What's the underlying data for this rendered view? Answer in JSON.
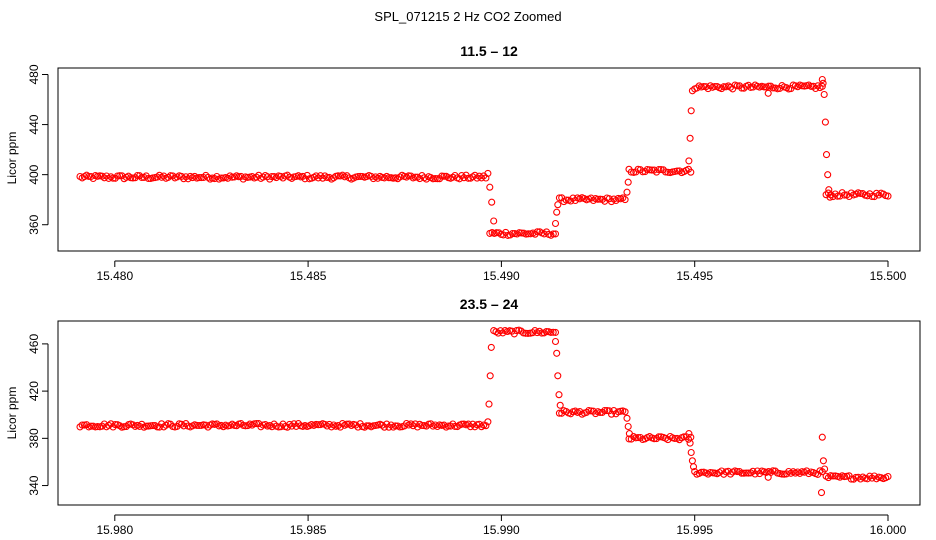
{
  "figure_title": "SPL_071215  2 Hz CO2 Zoomed",
  "colors": {
    "points": "#ff0000",
    "axes": "#000000",
    "background": "#ffffff"
  },
  "chart_data": [
    {
      "type": "scatter",
      "title": "11.5 – 12",
      "xlabel": "",
      "ylabel": "Licor ppm",
      "xlim": [
        15.4791,
        15.5
      ],
      "ylim": [
        347,
        482
      ],
      "xticks": [
        15.48,
        15.485,
        15.49,
        15.495,
        15.5
      ],
      "xtick_labels": [
        "15.480",
        "15.485",
        "15.490",
        "15.495",
        "15.500"
      ],
      "yticks": [
        360,
        400,
        440,
        480
      ],
      "ytick_labels": [
        "360",
        "400",
        "440",
        "480"
      ],
      "grid": false,
      "marker": "open circle",
      "segments": [
        {
          "x_start": 15.4791,
          "x_end": 15.4896,
          "y": 398
        },
        {
          "x_start": 15.4897,
          "x_end": 15.4914,
          "y": 353
        },
        {
          "x_start": 15.4915,
          "x_end": 15.4932,
          "y": 380
        },
        {
          "x_start": 15.4933,
          "x_end": 15.4949,
          "y": 403
        },
        {
          "x_start": 15.495,
          "x_end": 15.4983,
          "y": 470
        },
        {
          "x_start": 15.4984,
          "x_end": 15.5,
          "y": 384
        }
      ],
      "transition_points": [
        [
          15.48965,
          401
        ],
        [
          15.4897,
          390
        ],
        [
          15.48975,
          378
        ],
        [
          15.4898,
          363
        ],
        [
          15.4914,
          361
        ],
        [
          15.49143,
          370
        ],
        [
          15.49146,
          376
        ],
        [
          15.49325,
          386
        ],
        [
          15.49328,
          394
        ],
        [
          15.49485,
          411
        ],
        [
          15.49488,
          429
        ],
        [
          15.49491,
          451
        ],
        [
          15.49494,
          467
        ],
        [
          15.4983,
          476
        ],
        [
          15.49832,
          473
        ],
        [
          15.49835,
          464
        ],
        [
          15.49838,
          442
        ],
        [
          15.49841,
          416
        ],
        [
          15.49844,
          400
        ],
        [
          15.49847,
          388
        ],
        [
          15.4985,
          382
        ],
        [
          15.4969,
          465
        ]
      ]
    },
    {
      "type": "scatter",
      "title": "23.5 – 24",
      "xlabel": "",
      "ylabel": "Licor ppm",
      "xlim": [
        15.9791,
        16.0
      ],
      "ylim": [
        332,
        476
      ],
      "xticks": [
        15.98,
        15.985,
        15.99,
        15.995,
        16.0
      ],
      "xtick_labels": [
        "15.980",
        "15.985",
        "15.990",
        "15.995",
        "16.000"
      ],
      "yticks": [
        340,
        380,
        420,
        460
      ],
      "ytick_labels": [
        "340",
        "380",
        "420",
        "460"
      ],
      "grid": false,
      "marker": "open circle",
      "segments": [
        {
          "x_start": 15.9791,
          "x_end": 15.9896,
          "y": 391
        },
        {
          "x_start": 15.9898,
          "x_end": 15.9914,
          "y": 470
        },
        {
          "x_start": 15.9915,
          "x_end": 15.9932,
          "y": 402
        },
        {
          "x_start": 15.9933,
          "x_end": 15.9949,
          "y": 380
        },
        {
          "x_start": 15.995,
          "x_end": 15.9983,
          "y": 351
        },
        {
          "x_start": 15.9984,
          "x_end": 16.0,
          "y": 347
        }
      ],
      "transition_points": [
        [
          15.98965,
          394
        ],
        [
          15.98968,
          409
        ],
        [
          15.98971,
          433
        ],
        [
          15.98974,
          457
        ],
        [
          15.9914,
          462
        ],
        [
          15.99143,
          452
        ],
        [
          15.99146,
          433
        ],
        [
          15.99149,
          417
        ],
        [
          15.99152,
          408
        ],
        [
          15.99325,
          397
        ],
        [
          15.99328,
          390
        ],
        [
          15.99331,
          384
        ],
        [
          15.99485,
          384
        ],
        [
          15.99488,
          376
        ],
        [
          15.99491,
          368
        ],
        [
          15.99494,
          361
        ],
        [
          15.99497,
          356
        ],
        [
          15.9983,
          381
        ],
        [
          15.99833,
          361
        ],
        [
          15.99836,
          354
        ],
        [
          15.99828,
          334
        ],
        [
          15.9969,
          347
        ]
      ]
    }
  ]
}
